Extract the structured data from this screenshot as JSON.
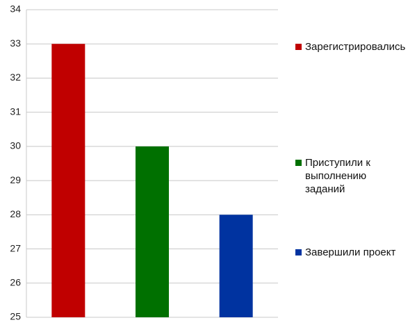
{
  "chart_data": {
    "type": "bar",
    "series": [
      {
        "name": "Зарегистрировались",
        "color": "#c00000",
        "values": [
          33
        ]
      },
      {
        "name": "Приступили к выполнению заданий",
        "color": "#007000",
        "values": [
          30
        ]
      },
      {
        "name": "Завершили проект",
        "color": "#0033a0",
        "values": [
          28
        ]
      }
    ],
    "ylim": [
      25,
      34
    ],
    "yticks": [
      25,
      26,
      27,
      28,
      29,
      30,
      31,
      32,
      33,
      34
    ],
    "grid": true,
    "legend": "right"
  }
}
